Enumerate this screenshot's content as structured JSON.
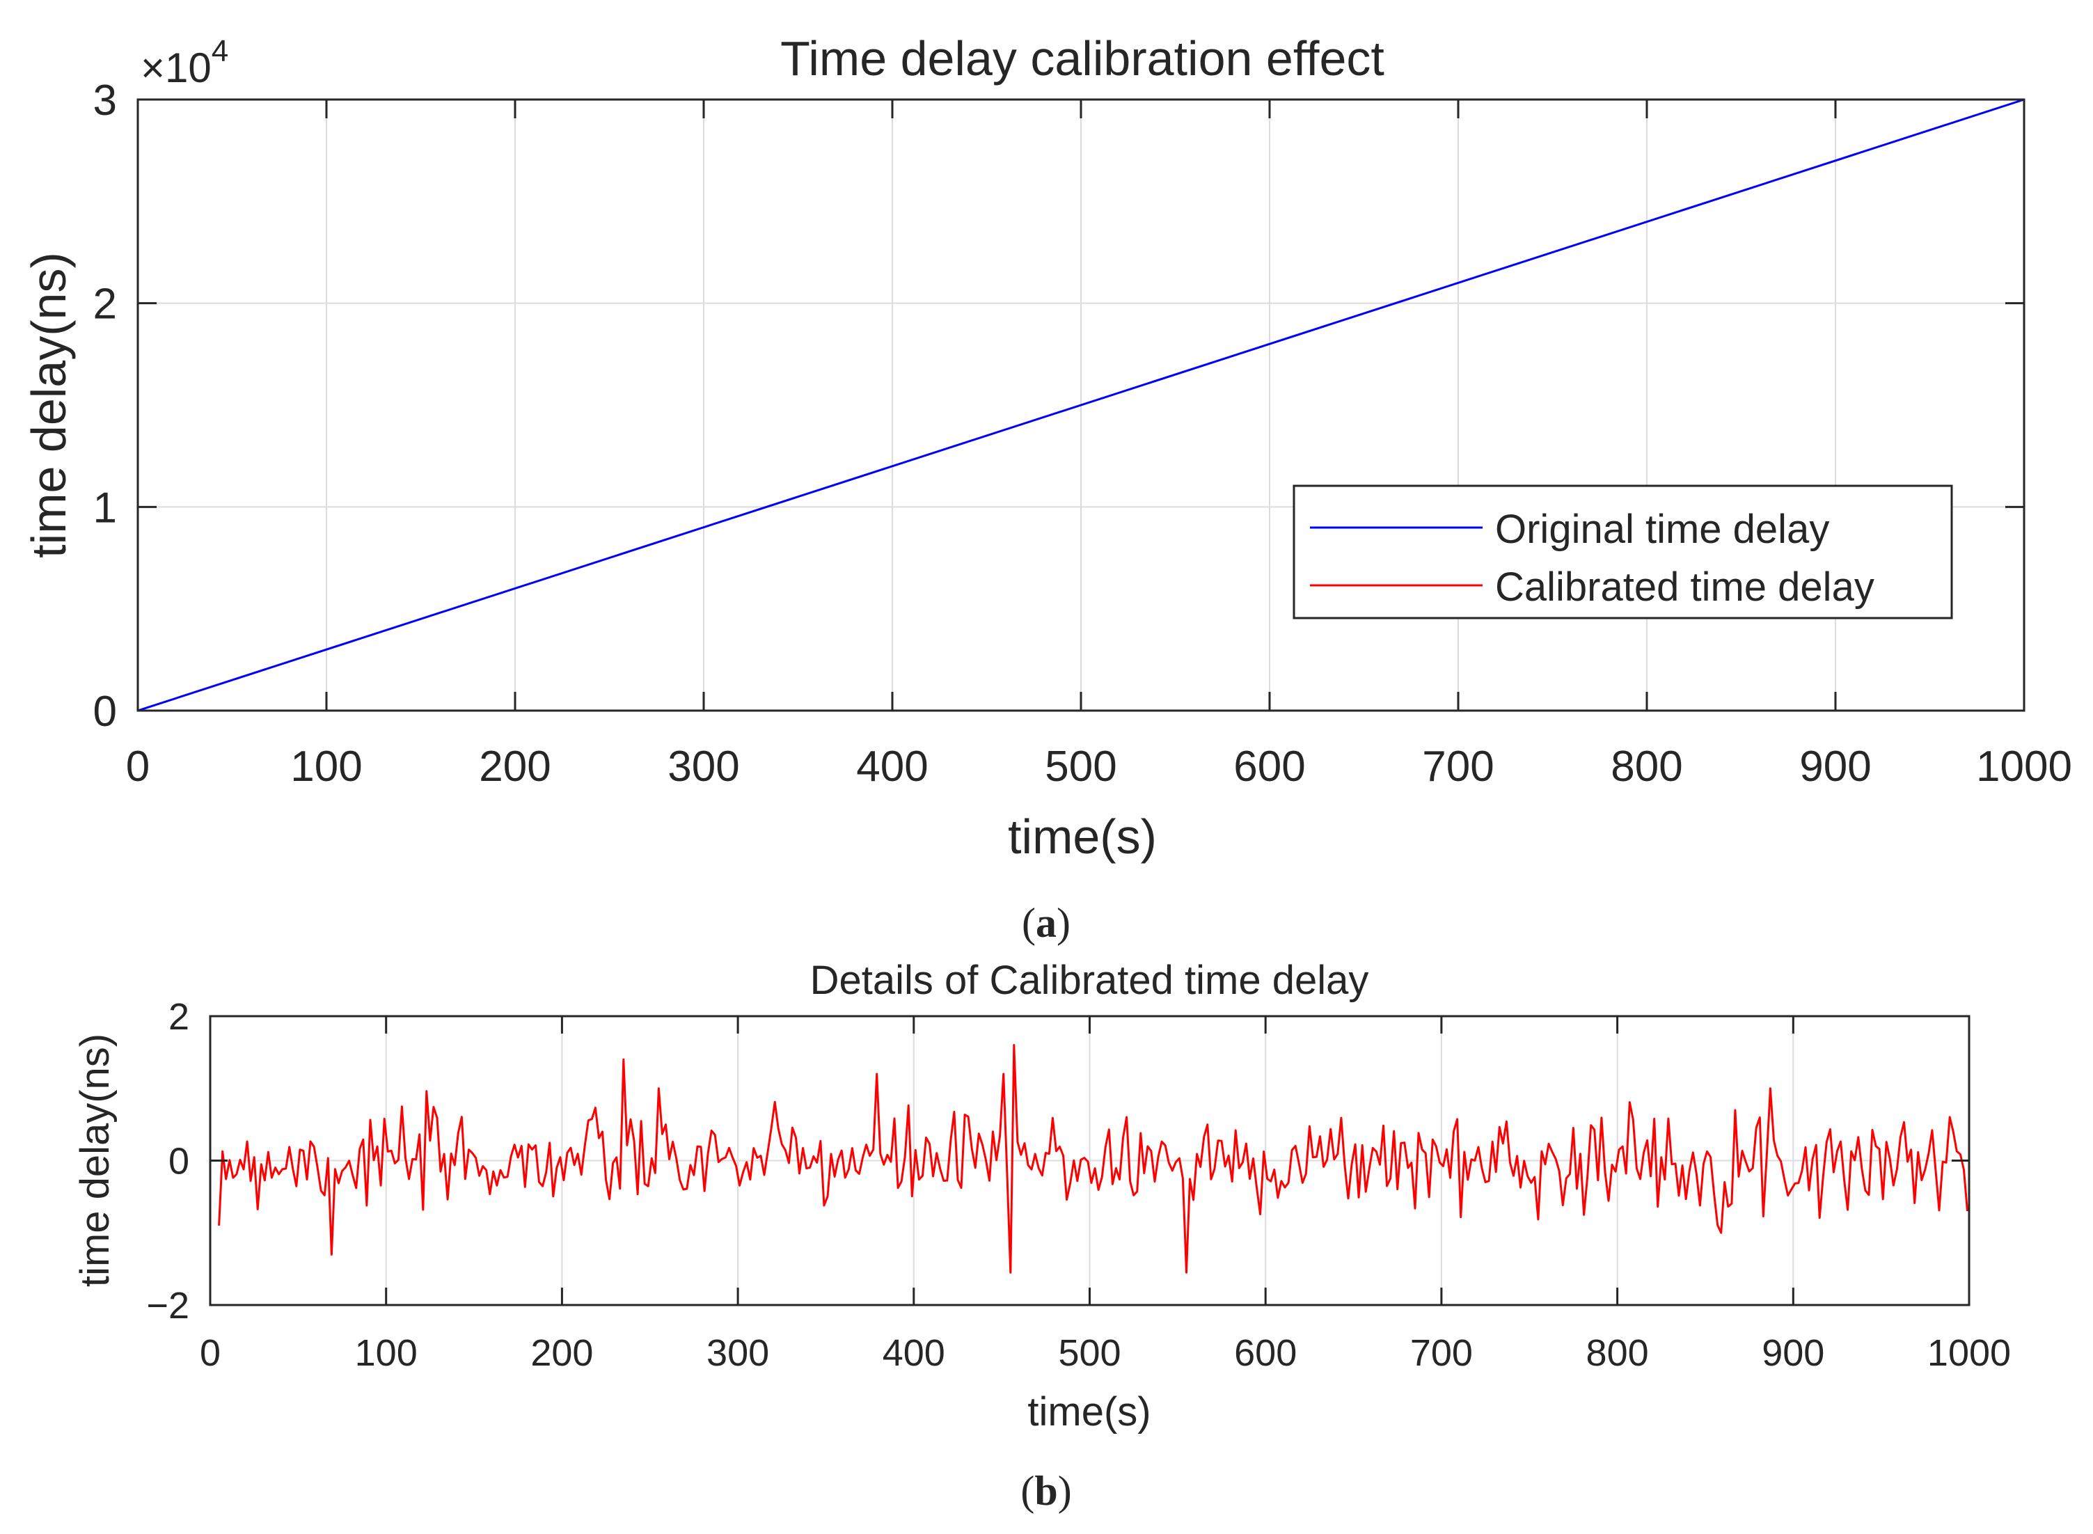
{
  "chart_data": [
    {
      "id": "a",
      "type": "line",
      "title": "Time delay calibration effect",
      "xlabel": "time(s)",
      "ylabel": "time delay(ns)",
      "xlim": [
        0,
        1000
      ],
      "ylim": [
        0,
        30000
      ],
      "x_ticks": [
        0,
        100,
        200,
        300,
        400,
        500,
        600,
        700,
        800,
        900,
        1000
      ],
      "x_tick_labels": [
        "0",
        "100",
        "200",
        "300",
        "400",
        "500",
        "600",
        "700",
        "800",
        "900",
        "1000"
      ],
      "y_ticks": [
        0,
        10000,
        20000,
        30000
      ],
      "y_tick_labels": [
        "0",
        "1",
        "2",
        "3"
      ],
      "y_multiplier_base": "×10",
      "y_multiplier_exp": "4",
      "grid": true,
      "legend_position": "center-right",
      "series": [
        {
          "name": "Original time delay",
          "color": "#0000ff",
          "x": [
            0,
            1000
          ],
          "y": [
            0,
            30000
          ]
        },
        {
          "name": "Calibrated time delay",
          "color": "#ff0000",
          "x": [
            0,
            1000
          ],
          "y": [
            0,
            0
          ]
        }
      ],
      "caption": "(a)",
      "caption_letter": "a"
    },
    {
      "id": "b",
      "type": "line",
      "title": "Details of Calibrated time delay",
      "xlabel": "time(s)",
      "ylabel": "time delay(ns)",
      "xlim": [
        0,
        1000
      ],
      "ylim": [
        -2,
        2
      ],
      "x_ticks": [
        0,
        100,
        200,
        300,
        400,
        500,
        600,
        700,
        800,
        900,
        1000
      ],
      "x_tick_labels": [
        "0",
        "100",
        "200",
        "300",
        "400",
        "500",
        "600",
        "700",
        "800",
        "900",
        "1000"
      ],
      "y_ticks": [
        -2,
        0,
        2
      ],
      "y_tick_labels": [
        "−2",
        "0",
        "2"
      ],
      "grid": true,
      "series": [
        {
          "name": "Calibrated time delay",
          "color": "#ff0000",
          "x_start": 5,
          "x_step": 2,
          "noise_seed": 7,
          "noise_std": 0.33,
          "features": [
            {
              "x": 6,
              "y": -0.9
            },
            {
              "x": 70,
              "y": -1.3
            },
            {
              "x": 236,
              "y": 1.4
            },
            {
              "x": 380,
              "y": 1.2
            },
            {
              "x": 452,
              "y": 1.2
            },
            {
              "x": 455,
              "y": -1.55
            },
            {
              "x": 458,
              "y": 1.6
            },
            {
              "x": 556,
              "y": -1.55
            },
            {
              "x": 1000,
              "y": -0.7
            }
          ]
        }
      ],
      "caption": "(b)",
      "caption_letter": "b"
    }
  ]
}
